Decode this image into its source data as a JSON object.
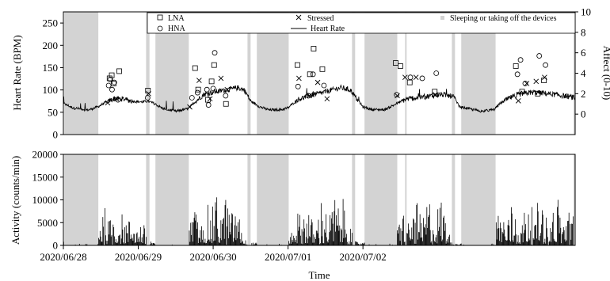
{
  "chart_data": [
    {
      "type": "line",
      "title": "",
      "xlabel": "",
      "ylabel": "Heart Rate (BPM)",
      "ylim": [
        0,
        275
      ],
      "yticks": [
        0,
        50,
        100,
        150,
        200,
        250
      ],
      "y2label": "Affect (0-10)",
      "y2lim": [
        -2,
        10
      ],
      "y2ticks": [
        0,
        2,
        4,
        6,
        8,
        10
      ],
      "xlim": [
        "2020/06/28 00:00",
        "2020/07/03 00:00"
      ],
      "grid": false,
      "legend_placement": "top",
      "legend": [
        {
          "key": "lna",
          "label": "LNA",
          "marker": "square"
        },
        {
          "key": "hna",
          "label": "HNA",
          "marker": "circle"
        },
        {
          "key": "stressed",
          "label": "Stressed",
          "marker": "x"
        },
        {
          "key": "hr",
          "label": "Heart Rate",
          "marker": "line"
        },
        {
          "key": "sleep",
          "label": "Sleeping or taking off the devices",
          "marker": "band"
        }
      ],
      "shaded_intervals_hours": [
        [
          0.3,
          11.2
        ],
        [
          26.5,
          27.6
        ],
        [
          29.5,
          40.2
        ],
        [
          59.0,
          60.0
        ],
        [
          62.0,
          72.2
        ],
        [
          92.5,
          93.5
        ],
        [
          96.5,
          107.0
        ],
        [
          109.5,
          110.0
        ],
        [
          124.5,
          125.5
        ],
        [
          127.5,
          138.5
        ],
        [
          163.5,
          164.0
        ]
      ],
      "heart_rate_series": {
        "name": "Heart Rate",
        "points_hours_bpm": [
          [
            0,
            70
          ],
          [
            3,
            60
          ],
          [
            8,
            55
          ],
          [
            11,
            62
          ],
          [
            13,
            70
          ],
          [
            16,
            80
          ],
          [
            19,
            80
          ],
          [
            22,
            75
          ],
          [
            25,
            73
          ],
          [
            27,
            75
          ],
          [
            29,
            70
          ],
          [
            32,
            58
          ],
          [
            36,
            52
          ],
          [
            40,
            58
          ],
          [
            42,
            72
          ],
          [
            45,
            90
          ],
          [
            48,
            95
          ],
          [
            52,
            100
          ],
          [
            56,
            105
          ],
          [
            58,
            100
          ],
          [
            60,
            75
          ],
          [
            63,
            62
          ],
          [
            66,
            55
          ],
          [
            70,
            56
          ],
          [
            72,
            60
          ],
          [
            75,
            78
          ],
          [
            79,
            88
          ],
          [
            82,
            92
          ],
          [
            86,
            100
          ],
          [
            89,
            105
          ],
          [
            92,
            100
          ],
          [
            94,
            80
          ],
          [
            96,
            62
          ],
          [
            99,
            56
          ],
          [
            103,
            56
          ],
          [
            107,
            70
          ],
          [
            110,
            80
          ],
          [
            113,
            82
          ],
          [
            117,
            86
          ],
          [
            121,
            90
          ],
          [
            125,
            85
          ],
          [
            127,
            62
          ],
          [
            130,
            58
          ],
          [
            134,
            52
          ],
          [
            138,
            56
          ],
          [
            140,
            70
          ],
          [
            143,
            82
          ],
          [
            147,
            92
          ],
          [
            151,
            95
          ],
          [
            155,
            92
          ],
          [
            159,
            88
          ],
          [
            162,
            85
          ],
          [
            164,
            82
          ]
        ]
      },
      "affect_series": [
        {
          "name": "LNA",
          "points_hours_value": [
            [
              14.8,
              3.5
            ],
            [
              15.5,
              3.8
            ],
            [
              16.1,
              3.0
            ],
            [
              17.9,
              4.2
            ],
            [
              27.1,
              2.3
            ],
            [
              42.2,
              4.5
            ],
            [
              43.2,
              2.4
            ],
            [
              46.3,
              1.4
            ],
            [
              47.5,
              3.2
            ],
            [
              48.3,
              4.8
            ],
            [
              52.1,
              1.0
            ],
            [
              75.0,
              4.8
            ],
            [
              79.0,
              3.9
            ],
            [
              80.2,
              6.4
            ],
            [
              83.0,
              4.4
            ],
            [
              106.5,
              5.0
            ],
            [
              108.0,
              4.7
            ],
            [
              111.0,
              3.1
            ],
            [
              119.0,
              2.2
            ],
            [
              145.0,
              4.7
            ],
            [
              147.0,
              2.2
            ],
            [
              152.0,
              2.0
            ],
            [
              154.0,
              3.3
            ]
          ]
        },
        {
          "name": "HNA",
          "points_hours_value": [
            [
              14.5,
              2.8
            ],
            [
              15.0,
              3.4
            ],
            [
              15.6,
              2.4
            ],
            [
              16.3,
              3.1
            ],
            [
              17.5,
              1.4
            ],
            [
              27.0,
              1.6
            ],
            [
              41.2,
              1.6
            ],
            [
              43.0,
              2.1
            ],
            [
              46.0,
              2.4
            ],
            [
              46.5,
              0.9
            ],
            [
              48.0,
              2.5
            ],
            [
              48.5,
              6.0
            ],
            [
              52.0,
              1.8
            ],
            [
              75.2,
              2.7
            ],
            [
              78.5,
              1.8
            ],
            [
              80.0,
              3.9
            ],
            [
              83.5,
              2.8
            ],
            [
              106.8,
              1.9
            ],
            [
              111.2,
              3.6
            ],
            [
              115.0,
              3.5
            ],
            [
              119.5,
              4.0
            ],
            [
              145.5,
              3.9
            ],
            [
              146.5,
              5.3
            ],
            [
              148.0,
              3.0
            ],
            [
              152.5,
              5.7
            ],
            [
              154.5,
              4.8
            ]
          ]
        },
        {
          "name": "Stressed",
          "points_hours_value": [
            [
              14.2,
              1.1
            ],
            [
              17.0,
              1.5
            ],
            [
              27.3,
              2.0
            ],
            [
              40.5,
              0.7
            ],
            [
              43.5,
              3.3
            ],
            [
              47.0,
              1.5
            ],
            [
              50.5,
              3.5
            ],
            [
              52.5,
              2.4
            ],
            [
              75.5,
              3.5
            ],
            [
              78.8,
              1.8
            ],
            [
              81.5,
              3.1
            ],
            [
              84.5,
              1.5
            ],
            [
              107.0,
              1.8
            ],
            [
              109.5,
              3.6
            ],
            [
              113.0,
              3.6
            ],
            [
              119.2,
              1.9
            ],
            [
              145.8,
              1.3
            ],
            [
              148.5,
              3.0
            ],
            [
              151.5,
              3.2
            ],
            [
              154.2,
              3.6
            ]
          ]
        }
      ]
    },
    {
      "type": "bar",
      "title": "",
      "xlabel": "Time",
      "ylabel": "Activity (counts/min)",
      "ylim": [
        0,
        20000
      ],
      "yticks": [
        0,
        5000,
        10000,
        15000,
        20000
      ],
      "xlim": [
        "2020/06/28 00:00",
        "2020/07/03 00:00"
      ],
      "xticks": [
        "2020/06/28",
        "2020/06/29",
        "2020/06/30",
        "2020/07/01",
        "2020/07/02"
      ],
      "grid": false,
      "shaded_intervals_hours": [
        [
          0.3,
          11.2
        ],
        [
          26.5,
          27.6
        ],
        [
          29.5,
          40.2
        ],
        [
          59.0,
          60.0
        ],
        [
          62.0,
          72.2
        ],
        [
          92.5,
          93.5
        ],
        [
          96.5,
          107.0
        ],
        [
          109.5,
          110.0
        ],
        [
          124.5,
          125.5
        ],
        [
          127.5,
          138.5
        ],
        [
          163.5,
          164.0
        ]
      ],
      "activity_peaks_hours_counts": [
        [
          2,
          5500
        ],
        [
          13,
          8500
        ],
        [
          16,
          7500
        ],
        [
          19,
          7000
        ],
        [
          22,
          6500
        ],
        [
          25,
          5000
        ],
        [
          42,
          8000
        ],
        [
          46,
          9000
        ],
        [
          49,
          11000
        ],
        [
          52,
          10500
        ],
        [
          55,
          9000
        ],
        [
          75,
          7500
        ],
        [
          78,
          9500
        ],
        [
          83,
          10500
        ],
        [
          87,
          11000
        ],
        [
          90,
          10000
        ],
        [
          109,
          8000
        ],
        [
          113,
          9500
        ],
        [
          117,
          10500
        ],
        [
          121,
          10500
        ],
        [
          140,
          8500
        ],
        [
          144,
          9500
        ],
        [
          149,
          11000
        ],
        [
          153,
          11500
        ],
        [
          158,
          11000
        ],
        [
          162,
          9500
        ]
      ]
    }
  ]
}
